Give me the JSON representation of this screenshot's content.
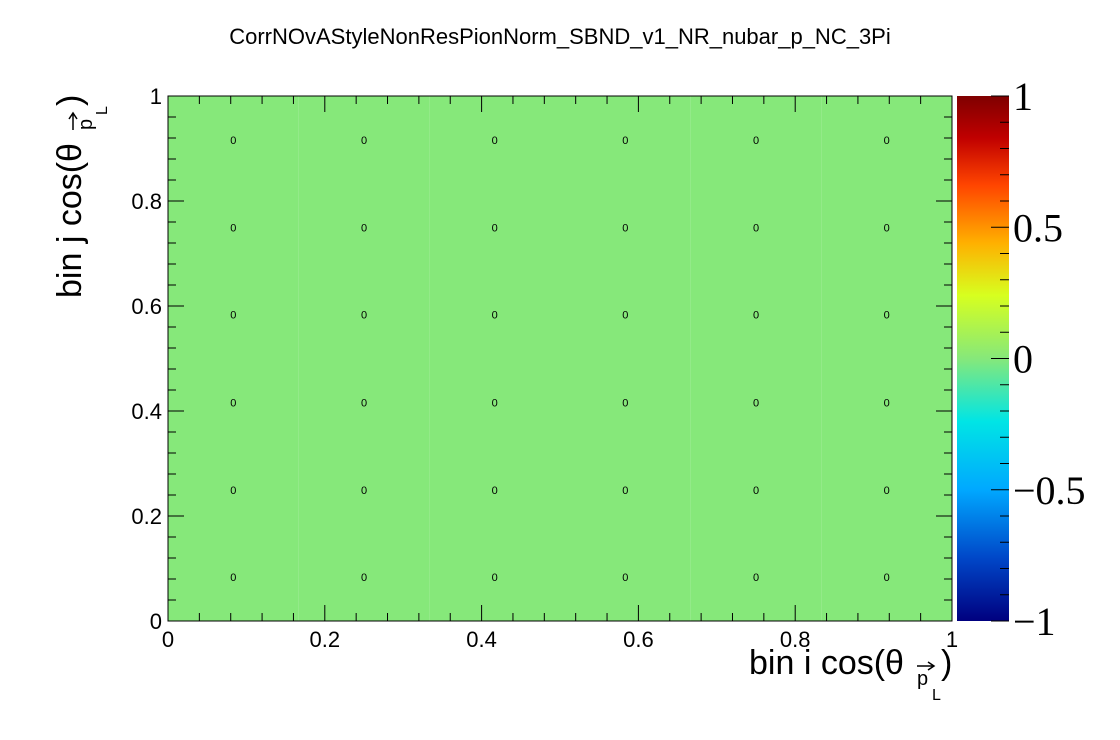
{
  "chart_data": {
    "type": "heatmap",
    "title": "CorrNOvAStyleNonResPionNorm_SBND_v1_NR_nubar_p_NC_3Pi",
    "xlabel": "bin i cos(θ",
    "ylabel": "bin j cos(θ",
    "axis_label_subscript": "p",
    "axis_label_subsubscript": "L",
    "axis_label_close": ")",
    "xlim": [
      0,
      1
    ],
    "ylim": [
      0,
      1
    ],
    "zlim": [
      -1,
      1
    ],
    "x_ticks": [
      "0",
      "0.2",
      "0.4",
      "0.6",
      "0.8",
      "1"
    ],
    "y_ticks": [
      "0",
      "0.2",
      "0.4",
      "0.6",
      "0.8",
      "1"
    ],
    "z_ticks": [
      "1",
      "0.5",
      "0",
      "−0.5",
      "−1"
    ],
    "x_bin_edges": [
      0,
      0.16667,
      0.33333,
      0.5,
      0.66667,
      0.83333,
      1
    ],
    "y_bin_edges": [
      0,
      0.16667,
      0.33333,
      0.5,
      0.66667,
      0.83333,
      1
    ],
    "values": [
      [
        0,
        0,
        0,
        0,
        0,
        0
      ],
      [
        0,
        0,
        0,
        0,
        0,
        0
      ],
      [
        0,
        0,
        0,
        0,
        0,
        0
      ],
      [
        0,
        0,
        0,
        0,
        0,
        0
      ],
      [
        0,
        0,
        0,
        0,
        0,
        0
      ],
      [
        0,
        0,
        0,
        0,
        0,
        0
      ]
    ],
    "cell_labels": [
      [
        "0",
        "0",
        "0",
        "0",
        "0",
        "0"
      ],
      [
        "0",
        "0",
        "0",
        "0",
        "0",
        "0"
      ],
      [
        "0",
        "0",
        "0",
        "0",
        "0",
        "0"
      ],
      [
        "0",
        "0",
        "0",
        "0",
        "0",
        "0"
      ],
      [
        "0",
        "0",
        "0",
        "0",
        "0",
        "0"
      ],
      [
        "0",
        "0",
        "0",
        "0",
        "0",
        "0"
      ]
    ],
    "cell_color": "#86e87a",
    "colormap": [
      "#00007f",
      "#0047c8",
      "#00a8ff",
      "#00e5e5",
      "#86e87a",
      "#d7ff1f",
      "#ffb000",
      "#ff4500",
      "#c00000",
      "#7f0000"
    ]
  }
}
